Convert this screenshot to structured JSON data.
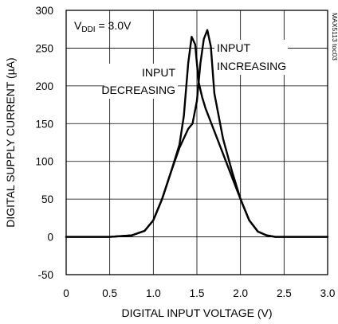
{
  "chart_data": {
    "type": "line",
    "xlabel": "DIGITAL INPUT VOLTAGE (V)",
    "ylabel": "DIGITAL SUPPLY CURRENT (µA)",
    "xlim": [
      0,
      3.0
    ],
    "ylim": [
      -50,
      300
    ],
    "x_ticks": [
      0,
      0.5,
      1.0,
      1.5,
      2.0,
      2.5,
      3.0
    ],
    "x_tick_labels": [
      "0",
      "0.5",
      "1.0",
      "1.5",
      "2.0",
      "2.5",
      "3.0"
    ],
    "y_ticks": [
      -50,
      0,
      50,
      100,
      150,
      200,
      250,
      300
    ],
    "y_tick_labels": [
      "-50",
      "0",
      "50",
      "100",
      "150",
      "200",
      "250",
      "300"
    ],
    "grid": true,
    "condition": {
      "main": "V",
      "sub": "DDI",
      "rest": " = 3.0V"
    },
    "side_label": "MAX5113 toc03",
    "annotations": [
      {
        "lines": [
          "INPUT",
          "INCREASING"
        ],
        "series": "increasing"
      },
      {
        "lines": [
          "INPUT",
          "DECREASING"
        ],
        "series": "decreasing"
      }
    ],
    "series": [
      {
        "id": "increasing",
        "x": [
          0,
          0.5,
          0.75,
          0.9,
          1.0,
          1.1,
          1.2,
          1.3,
          1.4,
          1.45,
          1.5,
          1.54,
          1.58,
          1.62,
          1.66,
          1.7,
          1.8,
          1.9,
          2.0,
          2.1,
          2.2,
          2.3,
          2.4,
          2.5,
          3.0
        ],
        "y": [
          0,
          0,
          2,
          8,
          22,
          50,
          85,
          118,
          143,
          150,
          180,
          230,
          262,
          274,
          252,
          190,
          130,
          88,
          50,
          22,
          7,
          2,
          0,
          0,
          0
        ]
      },
      {
        "id": "decreasing",
        "x": [
          0,
          0.5,
          0.75,
          0.9,
          1.0,
          1.1,
          1.2,
          1.3,
          1.35,
          1.4,
          1.44,
          1.48,
          1.52,
          1.56,
          1.6,
          1.7,
          1.8,
          1.9,
          2.0,
          2.1,
          2.2,
          2.3,
          2.4,
          2.5,
          3.0
        ],
        "y": [
          0,
          0,
          2,
          8,
          22,
          50,
          85,
          122,
          160,
          230,
          265,
          255,
          205,
          185,
          170,
          140,
          110,
          80,
          50,
          22,
          7,
          2,
          0,
          0,
          0
        ]
      }
    ]
  }
}
